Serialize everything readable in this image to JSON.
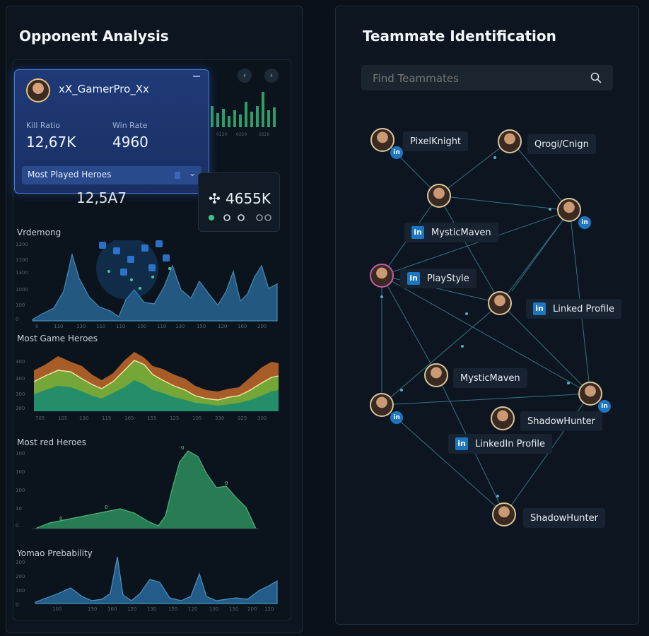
{
  "left_panel": {
    "title": "Opponent Analysis",
    "profile": {
      "name": "xX_GamerPro_Xx",
      "kill_ratio_label": "Kill Ratio",
      "kill_ratio_value": "12,67K",
      "win_rate_label": "Win Rate",
      "win_rate_value": "4960",
      "most_played_label": "Most Played Heroes"
    },
    "stat_left_value": "12,5A7",
    "stat_right_value": "4655K",
    "stat_right_prefix": "✣",
    "charts": [
      {
        "label": "Vrdemong",
        "type": "area"
      },
      {
        "label": "Most Game Heroes",
        "type": "stacked-area"
      },
      {
        "label": "Most red Heroes",
        "type": "area"
      },
      {
        "label": "Yomao Prebability",
        "type": "area"
      }
    ]
  },
  "right_panel": {
    "title": "Teammate Identification",
    "search_placeholder": "Find Teammates",
    "chips": [
      {
        "label": "PixelKnight"
      },
      {
        "label": "Qrogi/Cnign"
      },
      {
        "label": "MysticMaven"
      },
      {
        "label": "PlayStyle"
      },
      {
        "label": "Linked Profile"
      },
      {
        "label": "MysticMaven"
      },
      {
        "label": "ShadowHunter"
      },
      {
        "label": "LinkedIn Profile"
      },
      {
        "label": "ShadowHunter"
      }
    ],
    "linkedin_glyph": "in"
  },
  "colors": {
    "accent_blue": "#1c76c2",
    "chart_blue": "#3f8fc9",
    "chart_green": "#3fa56a",
    "node_link": "#4fb0c4"
  },
  "icons": [
    "search-icon",
    "chevron-left-icon",
    "chevron-right-icon",
    "chevron-down-icon",
    "linkedin-icon"
  ]
}
